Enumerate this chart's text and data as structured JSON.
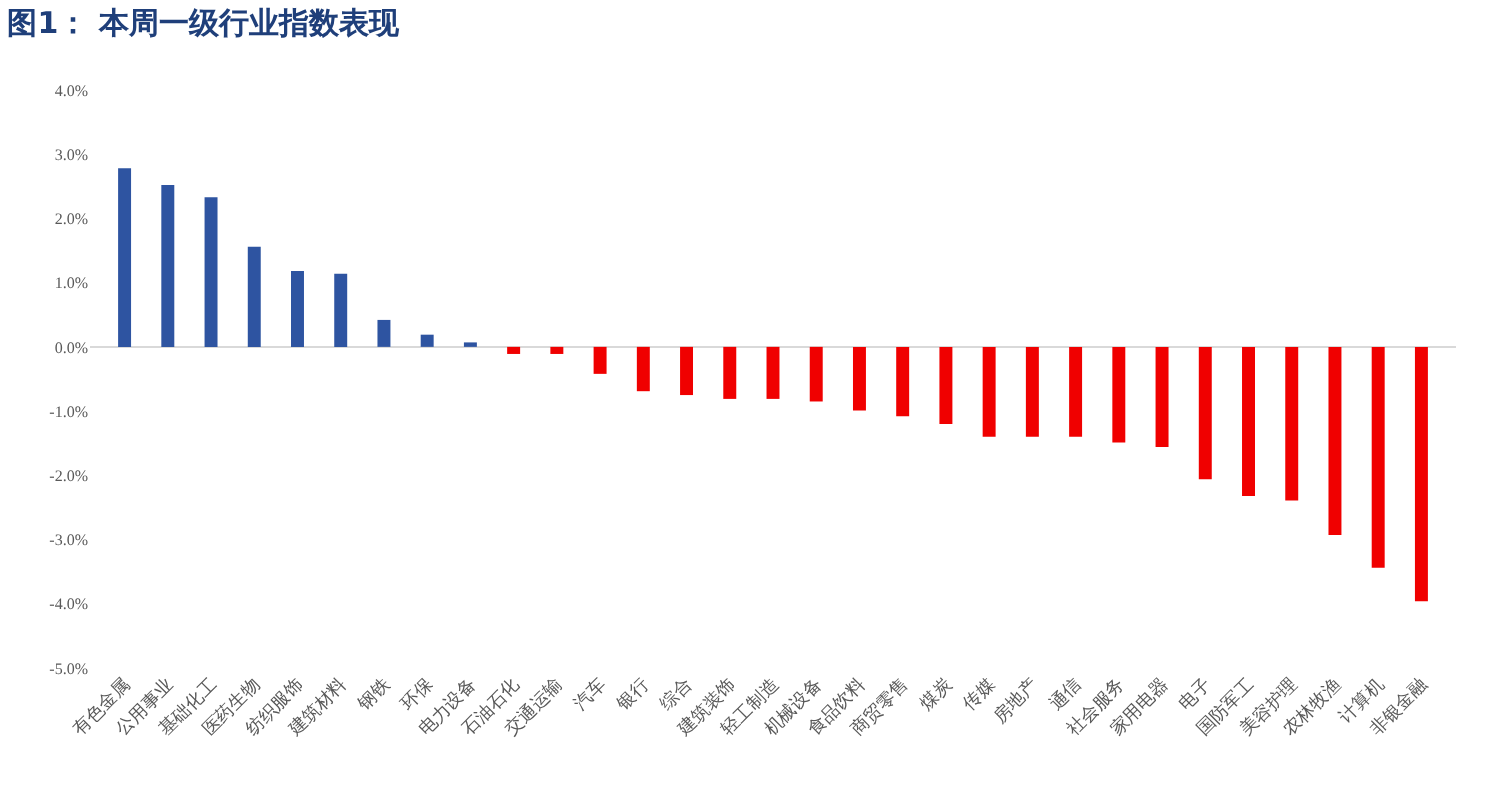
{
  "chart_data": {
    "type": "bar",
    "title": "图1： 本周一级行业指数表现",
    "categories": [
      "有色金属",
      "公用事业",
      "基础化工",
      "医药生物",
      "纺织服饰",
      "建筑材料",
      "钢铁",
      "环保",
      "电力设备",
      "石油石化",
      "交通运输",
      "汽车",
      "银行",
      "综合",
      "建筑装饰",
      "轻工制造",
      "机械设备",
      "食品饮料",
      "商贸零售",
      "煤炭",
      "传媒",
      "房地产",
      "通信",
      "社会服务",
      "家用电器",
      "电子",
      "国防军工",
      "美容护理",
      "农林牧渔",
      "计算机",
      "非银金融"
    ],
    "values": [
      2.78,
      2.52,
      2.33,
      1.56,
      1.18,
      1.14,
      0.42,
      0.19,
      0.07,
      -0.11,
      -0.11,
      -0.42,
      -0.69,
      -0.75,
      -0.81,
      -0.81,
      -0.85,
      -0.99,
      -1.08,
      -1.2,
      -1.4,
      -1.4,
      -1.4,
      -1.49,
      -1.56,
      -2.06,
      -2.32,
      -2.39,
      -2.93,
      -3.44,
      -3.96
    ],
    "colors": [
      "#2e54a1",
      "#2e54a1",
      "#2e54a1",
      "#2e54a1",
      "#2e54a1",
      "#2e54a1",
      "#2e54a1",
      "#2e54a1",
      "#2e54a1",
      "#f00000",
      "#f00000",
      "#f00000",
      "#f00000",
      "#f00000",
      "#f00000",
      "#f00000",
      "#f00000",
      "#f00000",
      "#f00000",
      "#f00000",
      "#f00000",
      "#f00000",
      "#f00000",
      "#f00000",
      "#f00000",
      "#f00000",
      "#f00000",
      "#f00000",
      "#f00000",
      "#f00000",
      "#f00000"
    ],
    "ylim": [
      -5,
      4
    ],
    "yticks": [
      {
        "value": 4,
        "label": "4.0%"
      },
      {
        "value": 3,
        "label": "3.0%"
      },
      {
        "value": 2,
        "label": "2.0%"
      },
      {
        "value": 1,
        "label": "1.0%"
      },
      {
        "value": 0,
        "label": "0.0%"
      },
      {
        "value": -1,
        "label": "-1.0%"
      },
      {
        "value": -2,
        "label": "-2.0%"
      },
      {
        "value": -3,
        "label": "-3.0%"
      },
      {
        "value": -4,
        "label": "-4.0%"
      },
      {
        "value": -5,
        "label": "-5.0%"
      }
    ]
  }
}
